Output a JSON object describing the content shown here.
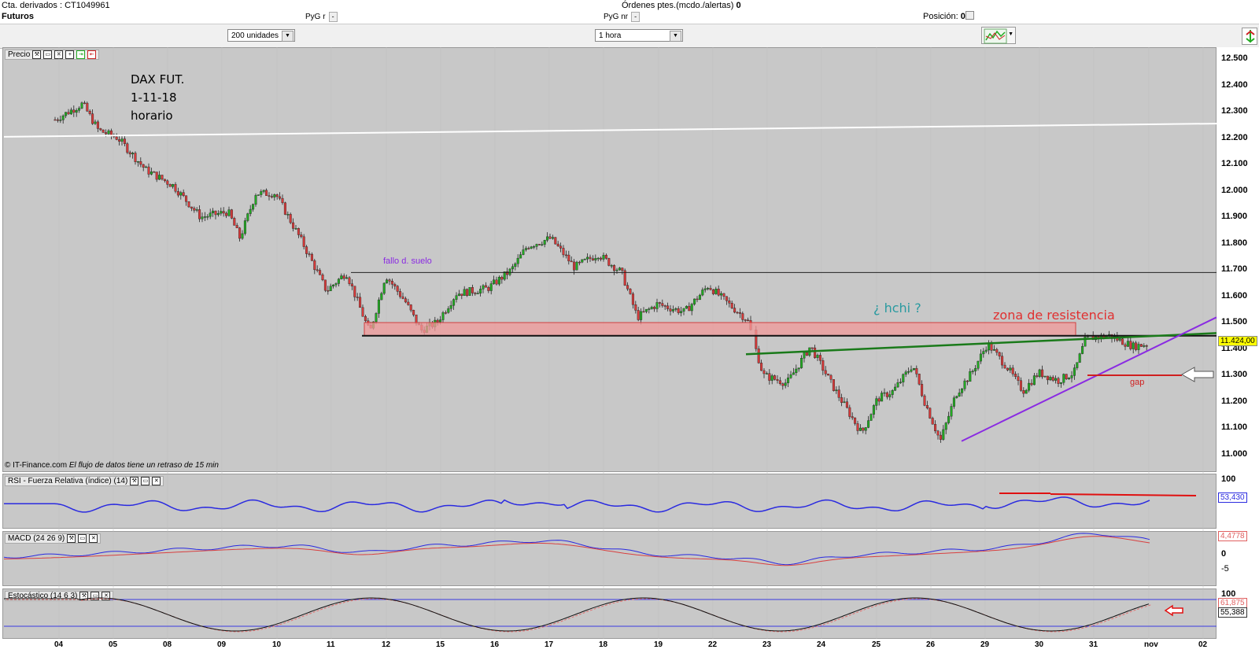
{
  "header": {
    "account": "Cta. derivados : CT1049961",
    "product": "Futuros",
    "pyg_r": "PyG r",
    "pyg_nr": "PyG nr",
    "orders_label": "Órdenes ptes.(mcdo./alertas)",
    "orders_value": "0",
    "position_label": "Posición:",
    "position_value": "0",
    "dash": "-"
  },
  "toolbar": {
    "units_select": "200 unidades",
    "interval_select": "1 hora"
  },
  "price_panel": {
    "title": "Precio",
    "annotation_title": [
      "DAX FUT.",
      "1-11-18",
      "horario"
    ],
    "label_fallo": "fallo d. suelo",
    "label_hchi": "¿ hchi ?",
    "label_zona": "zona de resistencia",
    "label_gap": "gap",
    "current_price": "11.424,00",
    "footer_source": "© IT-Finance.com",
    "footer_delay": "El flujo de datos tiene un retraso de 15 min",
    "y_ticks": [
      "12.500",
      "12.400",
      "12.300",
      "12.200",
      "12.100",
      "12.000",
      "11.900",
      "11.800",
      "11.700",
      "11.600",
      "11.500",
      "11.400",
      "11.300",
      "11.200",
      "11.100",
      "11.000"
    ]
  },
  "rsi_panel": {
    "title": "RSI - Fuerza Relativa (índice) (14)",
    "top_tick": "100",
    "value": "53,430"
  },
  "macd_panel": {
    "title": "MACD (24 26 9)",
    "value": "4,4778",
    "ticks": [
      "0",
      "-5"
    ]
  },
  "stoch_panel": {
    "title": "Estocástico (14 6 3)",
    "top_tick": "100",
    "value_k": "61,875",
    "value_d": "55,388"
  },
  "x_ticks": [
    "04",
    "05",
    "08",
    "09",
    "10",
    "11",
    "12",
    "15",
    "16",
    "17",
    "18",
    "19",
    "22",
    "23",
    "24",
    "25",
    "26",
    "29",
    "30",
    "31",
    "nov",
    "02"
  ],
  "colors": {
    "panel_bg": "#c8c8c8",
    "up": "#22aa22",
    "down": "#d83a3a",
    "trend_green": "#1a7a1a",
    "trend_purple": "#8a2be2",
    "zone": "#f29a9a",
    "rsi": "#2a2ae0"
  }
}
